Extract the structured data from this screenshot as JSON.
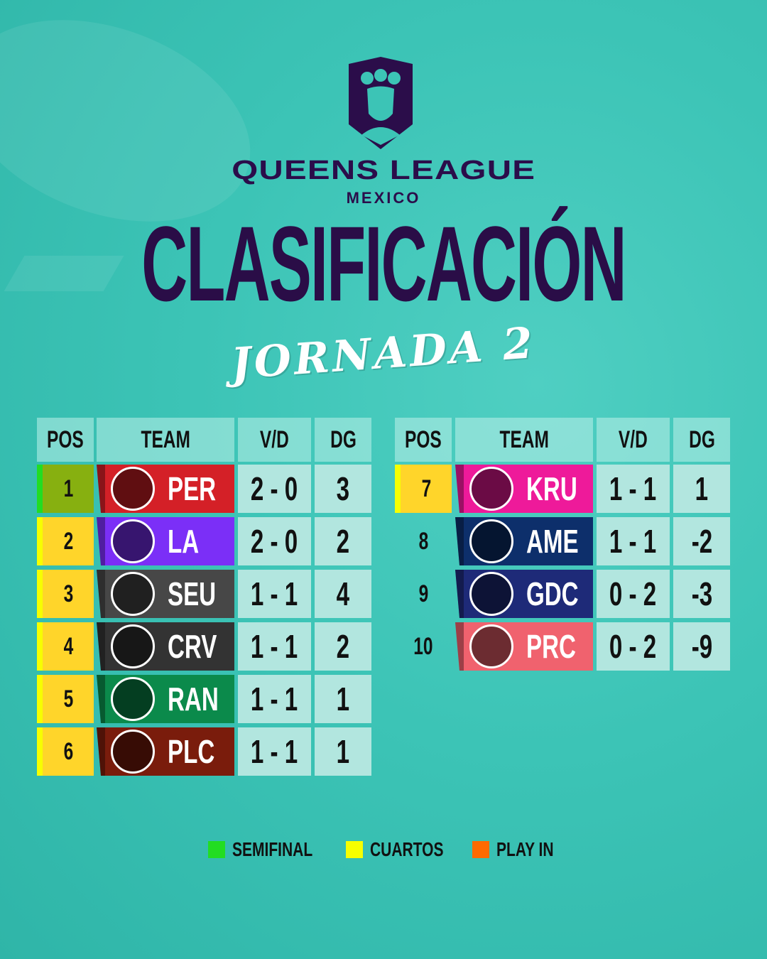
{
  "brand": {
    "name": "QUEENS LEAGUE",
    "region": "MEXICO"
  },
  "title": "CLASIFICACIÓN",
  "subtitle": "JORNADA 2",
  "headers": {
    "pos": "POS",
    "team": "TEAM",
    "vd": "V/D",
    "dg": "DG"
  },
  "colors": {
    "semifinal": "#22dd22",
    "cuartos": "#f6ff00",
    "playin": "#ff6a00",
    "title": "#2a0d47"
  },
  "standings": [
    {
      "pos": "1",
      "team": "PER",
      "vd": "2 - 0",
      "dg": "3",
      "color": "#d42027",
      "zone": "semifinal"
    },
    {
      "pos": "2",
      "team": "LA",
      "vd": "2 - 0",
      "dg": "2",
      "color": "#7b2ff7",
      "zone": "cuartos"
    },
    {
      "pos": "3",
      "team": "SEU",
      "vd": "1 - 1",
      "dg": "4",
      "color": "#474747",
      "zone": "cuartos"
    },
    {
      "pos": "4",
      "team": "CRV",
      "vd": "1 - 1",
      "dg": "2",
      "color": "#333333",
      "zone": "cuartos"
    },
    {
      "pos": "5",
      "team": "RAN",
      "vd": "1 - 1",
      "dg": "1",
      "color": "#0b8a4b",
      "zone": "cuartos"
    },
    {
      "pos": "6",
      "team": "PLC",
      "vd": "1 - 1",
      "dg": "1",
      "color": "#7a1c0c",
      "zone": "cuartos"
    },
    {
      "pos": "7",
      "team": "KRU",
      "vd": "1 - 1",
      "dg": "1",
      "color": "#ee1a9a",
      "zone": "cuartos"
    },
    {
      "pos": "8",
      "team": "AME",
      "vd": "1 - 1",
      "dg": "-2",
      "color": "#0d2f6b",
      "zone": ""
    },
    {
      "pos": "9",
      "team": "GDC",
      "vd": "0 - 2",
      "dg": "-3",
      "color": "#1e2a78",
      "zone": ""
    },
    {
      "pos": "10",
      "team": "PRC",
      "vd": "0 - 2",
      "dg": "-9",
      "color": "#f0626e",
      "zone": ""
    }
  ],
  "legend": [
    {
      "label": "SEMIFINAL",
      "color": "#22dd22"
    },
    {
      "label": "CUARTOS",
      "color": "#f6ff00"
    },
    {
      "label": "PLAY IN",
      "color": "#ff6a00"
    }
  ]
}
